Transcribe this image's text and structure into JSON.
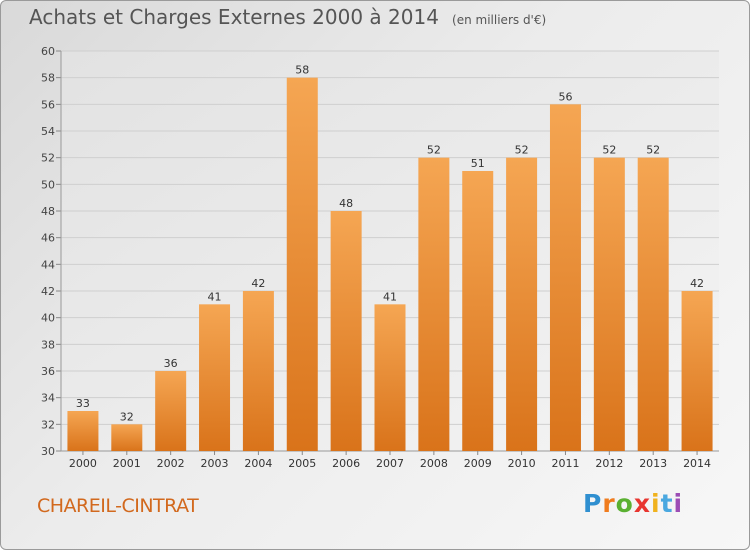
{
  "title": "Achats et Charges Externes 2000 à 2014",
  "subtitle": "(en milliers d'€)",
  "city": "CHAREIL-CINTRAT",
  "logo": {
    "letters": [
      "P",
      "r",
      "o",
      "x",
      "i",
      "t",
      "i"
    ],
    "colors": [
      "#2f8fd0",
      "#f07c1e",
      "#5ab031",
      "#e8352f",
      "#f0b21e",
      "#4aa8e0",
      "#9c4db5"
    ]
  },
  "colors": {
    "bar_top": "#f5a653",
    "bar_bottom": "#d9731a",
    "title": "#555555",
    "city": "#d2691e"
  },
  "chart_data": {
    "type": "bar",
    "categories": [
      "2000",
      "2001",
      "2002",
      "2003",
      "2004",
      "2005",
      "2006",
      "2007",
      "2008",
      "2009",
      "2010",
      "2011",
      "2012",
      "2013",
      "2014"
    ],
    "values": [
      33,
      32,
      36,
      41,
      42,
      58,
      48,
      41,
      52,
      51,
      52,
      56,
      52,
      52,
      42
    ],
    "ylim": [
      30,
      60
    ],
    "yticks": [
      30,
      32,
      34,
      36,
      38,
      40,
      42,
      44,
      46,
      48,
      50,
      52,
      54,
      56,
      58,
      60
    ],
    "grid": true
  }
}
